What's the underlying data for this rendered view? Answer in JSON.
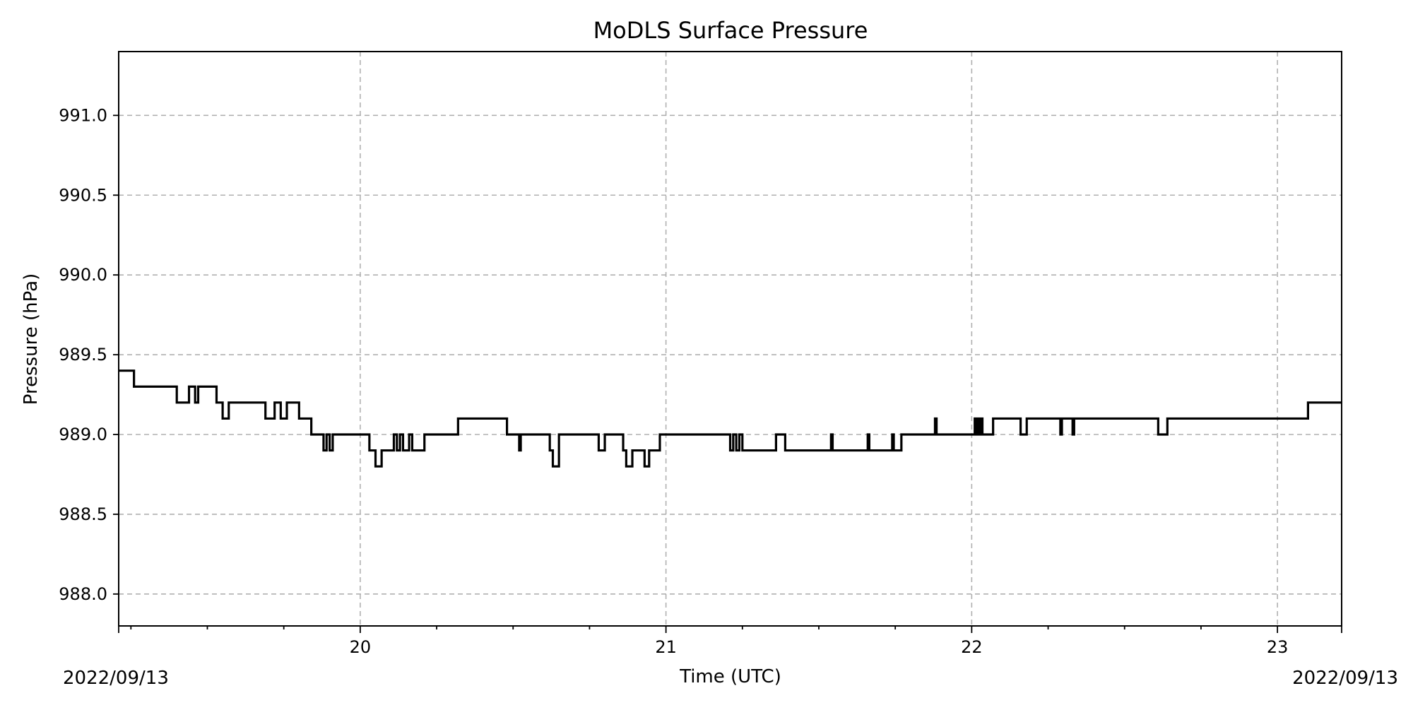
{
  "chart_data": {
    "type": "line",
    "title": "MoDLS Surface Pressure",
    "xlabel": "Time (UTC)",
    "ylabel": "Pressure (hPa)",
    "date_left": "2022/09/13",
    "date_right": "2022/09/13",
    "xlim": [
      19.21,
      23.21
    ],
    "ylim": [
      987.8,
      991.4
    ],
    "x_ticks": [
      {
        "value": 20,
        "label": "20"
      },
      {
        "value": 21,
        "label": "21"
      },
      {
        "value": 22,
        "label": "22"
      },
      {
        "value": 23,
        "label": "23"
      }
    ],
    "x_minor_ticks": [
      19.25,
      19.5,
      19.75,
      20.25,
      20.5,
      20.75,
      21.25,
      21.5,
      21.75,
      22.25,
      22.5,
      22.75
    ],
    "y_ticks": [
      {
        "value": 988.0,
        "label": "988.0"
      },
      {
        "value": 988.5,
        "label": "988.5"
      },
      {
        "value": 989.0,
        "label": "989.0"
      },
      {
        "value": 989.5,
        "label": "989.5"
      },
      {
        "value": 990.0,
        "label": "990.0"
      },
      {
        "value": 990.5,
        "label": "990.5"
      },
      {
        "value": 991.0,
        "label": "991.0"
      }
    ],
    "grid": true,
    "legend": "none",
    "line_color": "#000000",
    "series": [
      {
        "step": "post",
        "x": [
          19.21,
          19.26,
          19.4,
          19.44,
          19.46,
          19.47,
          19.53,
          19.55,
          19.57,
          19.69,
          19.72,
          19.74,
          19.76,
          19.8,
          19.84,
          19.88,
          19.89,
          19.9,
          19.91,
          20.03,
          20.05,
          20.07,
          20.11,
          20.12,
          20.13,
          20.14,
          20.16,
          20.17,
          20.21,
          20.32,
          20.48,
          20.52,
          20.525,
          20.62,
          20.63,
          20.65,
          20.78,
          20.8,
          20.82,
          20.86,
          20.87,
          20.89,
          20.93,
          20.945,
          20.97,
          20.98,
          20.99,
          21.21,
          21.22,
          21.23,
          21.24,
          21.25,
          21.26,
          21.36,
          21.39,
          21.54,
          21.545,
          21.66,
          21.665,
          21.74,
          21.745,
          21.77,
          21.88,
          21.885,
          22.01,
          22.015,
          22.02,
          22.025,
          22.03,
          22.035,
          22.07,
          22.16,
          22.18,
          22.29,
          22.295,
          22.33,
          22.335,
          22.61,
          22.64,
          23.1,
          23.21
        ],
        "y": [
          989.4,
          989.3,
          989.2,
          989.3,
          989.2,
          989.3,
          989.2,
          989.1,
          989.2,
          989.1,
          989.2,
          989.1,
          989.2,
          989.1,
          989.0,
          988.9,
          989.0,
          988.9,
          989.0,
          988.9,
          988.8,
          988.9,
          989.0,
          988.9,
          989.0,
          988.9,
          989.0,
          988.9,
          989.0,
          989.1,
          989.0,
          988.9,
          989.0,
          988.9,
          988.8,
          989.0,
          988.9,
          989.0,
          989.0,
          988.9,
          988.8,
          988.9,
          988.8,
          988.9,
          988.9,
          989.0,
          989.0,
          988.9,
          989.0,
          988.9,
          989.0,
          988.9,
          988.9,
          989.0,
          988.9,
          989.0,
          988.9,
          989.0,
          988.9,
          989.0,
          988.9,
          989.0,
          989.1,
          989.0,
          989.1,
          989.0,
          989.1,
          989.0,
          989.1,
          989.0,
          989.1,
          989.0,
          989.1,
          989.0,
          989.1,
          989.0,
          989.1,
          989.0,
          989.1,
          989.2,
          989.2
        ]
      }
    ]
  }
}
